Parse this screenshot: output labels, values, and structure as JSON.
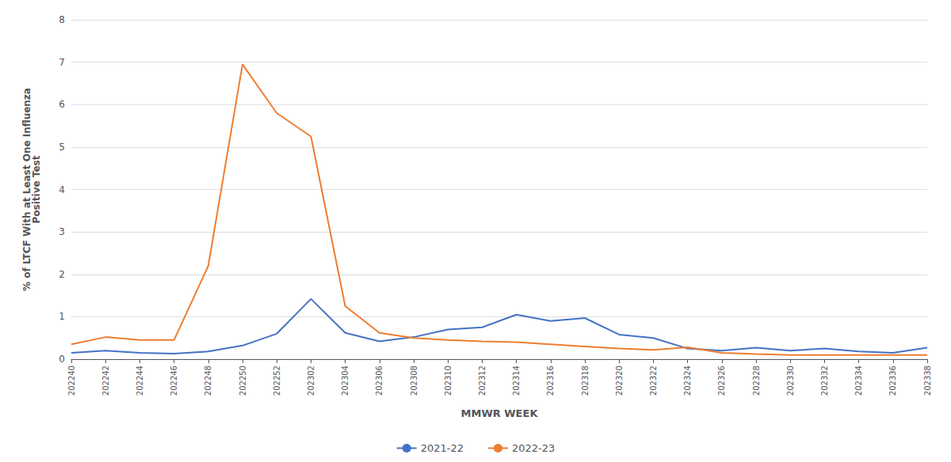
{
  "chart_data": {
    "type": "line",
    "categories": [
      "202240",
      "202242",
      "202244",
      "202246",
      "202248",
      "202250",
      "202252",
      "202302",
      "202304",
      "202306",
      "202308",
      "202310",
      "202312",
      "202314",
      "202316",
      "202318",
      "202320",
      "202322",
      "202324",
      "202326",
      "202328",
      "202330",
      "202332",
      "202334",
      "202336",
      "202338"
    ],
    "series": [
      {
        "name": "2021-22",
        "color": "#4472C4",
        "values": [
          0.15,
          0.2,
          0.15,
          0.13,
          0.18,
          0.32,
          0.6,
          1.42,
          0.62,
          0.42,
          0.52,
          0.7,
          0.75,
          1.05,
          0.9,
          0.97,
          0.58,
          0.5,
          0.25,
          0.2,
          0.27,
          0.2,
          0.25,
          0.18,
          0.15,
          0.27
        ]
      },
      {
        "name": "2022-23",
        "color": "#ED7D31",
        "values": [
          0.35,
          0.52,
          0.45,
          0.45,
          2.2,
          6.95,
          5.8,
          5.25,
          1.25,
          0.62,
          0.5,
          0.45,
          0.42,
          0.4,
          0.35,
          0.3,
          0.25,
          0.22,
          0.28,
          0.15,
          0.12,
          0.1,
          0.1,
          0.1,
          0.1,
          0.1
        ]
      }
    ],
    "xlabel": "MMWR WEEK",
    "ylabel": "% of LTCF With at Least One Influenza\nPositive Test",
    "ylim": [
      0,
      8
    ],
    "yticks": [
      0,
      1,
      2,
      3,
      4,
      5,
      6,
      7,
      8
    ],
    "grid": true,
    "legend": "bottom"
  }
}
